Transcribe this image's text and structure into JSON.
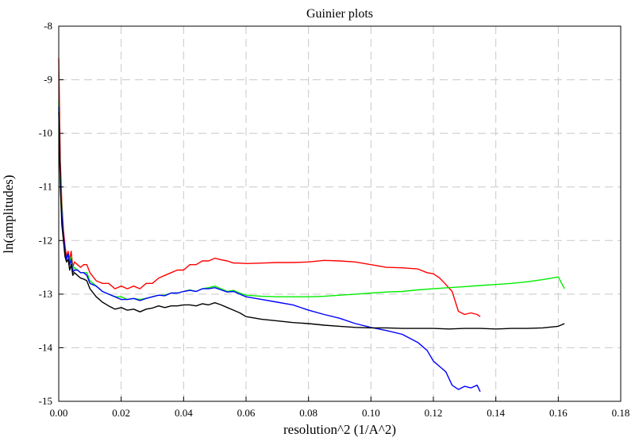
{
  "chart_data": {
    "type": "line",
    "title": "Guinier plots",
    "xlabel": "resolution^2 (1/A^2)",
    "ylabel": "ln(amplitudes)",
    "xlim": [
      0,
      0.18
    ],
    "ylim": [
      -15,
      -8
    ],
    "xticks": [
      "0.00",
      "0.02",
      "0.04",
      "0.06",
      "0.08",
      "0.10",
      "0.12",
      "0.14",
      "0.16",
      "0.18"
    ],
    "yticks": [
      "-15",
      "-14",
      "-13",
      "-12",
      "-11",
      "-10",
      "-9",
      "-8"
    ],
    "grid": true,
    "series": [
      {
        "color": "#ff0000",
        "x": [
          0.0,
          0.0005,
          0.001,
          0.0015,
          0.002,
          0.0025,
          0.003,
          0.0035,
          0.004,
          0.0045,
          0.005,
          0.006,
          0.007,
          0.008,
          0.009,
          0.01,
          0.012,
          0.014,
          0.016,
          0.018,
          0.02,
          0.022,
          0.024,
          0.026,
          0.028,
          0.03,
          0.032,
          0.034,
          0.036,
          0.038,
          0.04,
          0.042,
          0.044,
          0.046,
          0.048,
          0.05,
          0.052,
          0.054,
          0.056,
          0.058,
          0.06,
          0.065,
          0.07,
          0.075,
          0.08,
          0.085,
          0.09,
          0.095,
          0.1,
          0.105,
          0.11,
          0.115,
          0.118,
          0.12,
          0.122,
          0.124,
          0.126,
          0.128,
          0.13,
          0.132,
          0.134,
          0.135
        ],
        "y": [
          -8.6,
          -10.5,
          -11.3,
          -11.8,
          -12.1,
          -12.3,
          -12.2,
          -12.35,
          -12.2,
          -12.5,
          -12.4,
          -12.45,
          -12.5,
          -12.45,
          -12.45,
          -12.6,
          -12.75,
          -12.8,
          -12.8,
          -12.9,
          -12.85,
          -12.9,
          -12.85,
          -12.9,
          -12.8,
          -12.8,
          -12.7,
          -12.65,
          -12.6,
          -12.55,
          -12.55,
          -12.45,
          -12.45,
          -12.38,
          -12.38,
          -12.33,
          -12.36,
          -12.38,
          -12.42,
          -12.42,
          -12.43,
          -12.42,
          -12.41,
          -12.41,
          -12.4,
          -12.37,
          -12.38,
          -12.4,
          -12.45,
          -12.5,
          -12.51,
          -12.53,
          -12.6,
          -12.62,
          -12.7,
          -12.82,
          -12.95,
          -13.32,
          -13.38,
          -13.35,
          -13.38,
          -13.42
        ]
      },
      {
        "color": "#00ee00",
        "x": [
          0.0,
          0.0005,
          0.001,
          0.0015,
          0.002,
          0.0025,
          0.003,
          0.0035,
          0.004,
          0.0045,
          0.005,
          0.006,
          0.007,
          0.008,
          0.009,
          0.01,
          0.012,
          0.014,
          0.016,
          0.018,
          0.02,
          0.022,
          0.024,
          0.026,
          0.028,
          0.03,
          0.032,
          0.034,
          0.036,
          0.038,
          0.04,
          0.042,
          0.044,
          0.046,
          0.048,
          0.05,
          0.052,
          0.054,
          0.056,
          0.058,
          0.06,
          0.065,
          0.07,
          0.075,
          0.08,
          0.085,
          0.09,
          0.095,
          0.1,
          0.105,
          0.11,
          0.115,
          0.12,
          0.125,
          0.13,
          0.135,
          0.14,
          0.145,
          0.15,
          0.155,
          0.158,
          0.16,
          0.162
        ],
        "y": [
          -9.4,
          -10.8,
          -11.4,
          -11.9,
          -12.2,
          -12.35,
          -12.25,
          -12.4,
          -12.3,
          -12.55,
          -12.5,
          -12.55,
          -12.6,
          -12.6,
          -12.6,
          -12.75,
          -12.85,
          -12.95,
          -13.0,
          -13.05,
          -13.05,
          -13.1,
          -13.08,
          -13.1,
          -13.08,
          -13.05,
          -13.02,
          -13.02,
          -12.98,
          -12.98,
          -12.95,
          -12.92,
          -12.95,
          -12.9,
          -12.88,
          -12.85,
          -12.9,
          -12.95,
          -12.93,
          -12.98,
          -13.02,
          -13.04,
          -13.05,
          -13.05,
          -13.05,
          -13.04,
          -13.02,
          -13.0,
          -12.98,
          -12.96,
          -12.95,
          -12.92,
          -12.9,
          -12.88,
          -12.86,
          -12.84,
          -12.82,
          -12.8,
          -12.77,
          -12.73,
          -12.7,
          -12.68,
          -12.9
        ]
      },
      {
        "color": "#0000ff",
        "x": [
          0.0,
          0.0005,
          0.001,
          0.0015,
          0.002,
          0.0025,
          0.003,
          0.0035,
          0.004,
          0.0045,
          0.005,
          0.006,
          0.007,
          0.008,
          0.009,
          0.01,
          0.012,
          0.014,
          0.016,
          0.018,
          0.02,
          0.022,
          0.024,
          0.026,
          0.028,
          0.03,
          0.032,
          0.034,
          0.036,
          0.038,
          0.04,
          0.042,
          0.044,
          0.046,
          0.048,
          0.05,
          0.052,
          0.054,
          0.056,
          0.058,
          0.06,
          0.065,
          0.07,
          0.075,
          0.08,
          0.085,
          0.09,
          0.095,
          0.1,
          0.105,
          0.11,
          0.115,
          0.118,
          0.12,
          0.122,
          0.124,
          0.126,
          0.128,
          0.13,
          0.132,
          0.134,
          0.135
        ],
        "y": [
          -9.5,
          -10.9,
          -11.5,
          -11.9,
          -12.2,
          -12.35,
          -12.25,
          -12.45,
          -12.35,
          -12.6,
          -12.55,
          -12.55,
          -12.6,
          -12.6,
          -12.65,
          -12.8,
          -12.85,
          -12.95,
          -13.0,
          -13.05,
          -13.1,
          -13.1,
          -13.08,
          -13.12,
          -13.08,
          -13.05,
          -13.02,
          -13.03,
          -12.98,
          -12.98,
          -12.95,
          -12.93,
          -12.95,
          -12.9,
          -12.9,
          -12.88,
          -12.92,
          -12.96,
          -12.95,
          -13.0,
          -13.05,
          -13.1,
          -13.15,
          -13.2,
          -13.3,
          -13.38,
          -13.45,
          -13.55,
          -13.62,
          -13.68,
          -13.75,
          -13.9,
          -14.05,
          -14.25,
          -14.35,
          -14.45,
          -14.7,
          -14.78,
          -14.72,
          -14.75,
          -14.7,
          -14.82
        ]
      },
      {
        "color": "#000000",
        "x": [
          0.0,
          0.0005,
          0.001,
          0.0015,
          0.002,
          0.0025,
          0.003,
          0.0035,
          0.004,
          0.0045,
          0.005,
          0.006,
          0.007,
          0.008,
          0.009,
          0.01,
          0.012,
          0.014,
          0.016,
          0.018,
          0.02,
          0.022,
          0.024,
          0.026,
          0.028,
          0.03,
          0.032,
          0.034,
          0.036,
          0.038,
          0.04,
          0.042,
          0.044,
          0.046,
          0.048,
          0.05,
          0.052,
          0.054,
          0.056,
          0.058,
          0.06,
          0.065,
          0.07,
          0.075,
          0.08,
          0.085,
          0.09,
          0.095,
          0.1,
          0.105,
          0.11,
          0.115,
          0.12,
          0.125,
          0.13,
          0.135,
          0.14,
          0.145,
          0.15,
          0.155,
          0.16,
          0.162
        ],
        "y": [
          -9.6,
          -11.0,
          -11.7,
          -12.0,
          -12.3,
          -12.4,
          -12.35,
          -12.55,
          -12.45,
          -12.65,
          -12.6,
          -12.65,
          -12.7,
          -12.72,
          -12.75,
          -12.9,
          -13.05,
          -13.15,
          -13.22,
          -13.28,
          -13.25,
          -13.3,
          -13.28,
          -13.33,
          -13.28,
          -13.26,
          -13.22,
          -13.25,
          -13.22,
          -13.22,
          -13.2,
          -13.2,
          -13.22,
          -13.18,
          -13.2,
          -13.16,
          -13.2,
          -13.25,
          -13.3,
          -13.35,
          -13.42,
          -13.47,
          -13.5,
          -13.53,
          -13.55,
          -13.58,
          -13.6,
          -13.62,
          -13.63,
          -13.63,
          -13.64,
          -13.64,
          -13.64,
          -13.65,
          -13.64,
          -13.64,
          -13.65,
          -13.64,
          -13.64,
          -13.63,
          -13.6,
          -13.55
        ]
      }
    ]
  }
}
